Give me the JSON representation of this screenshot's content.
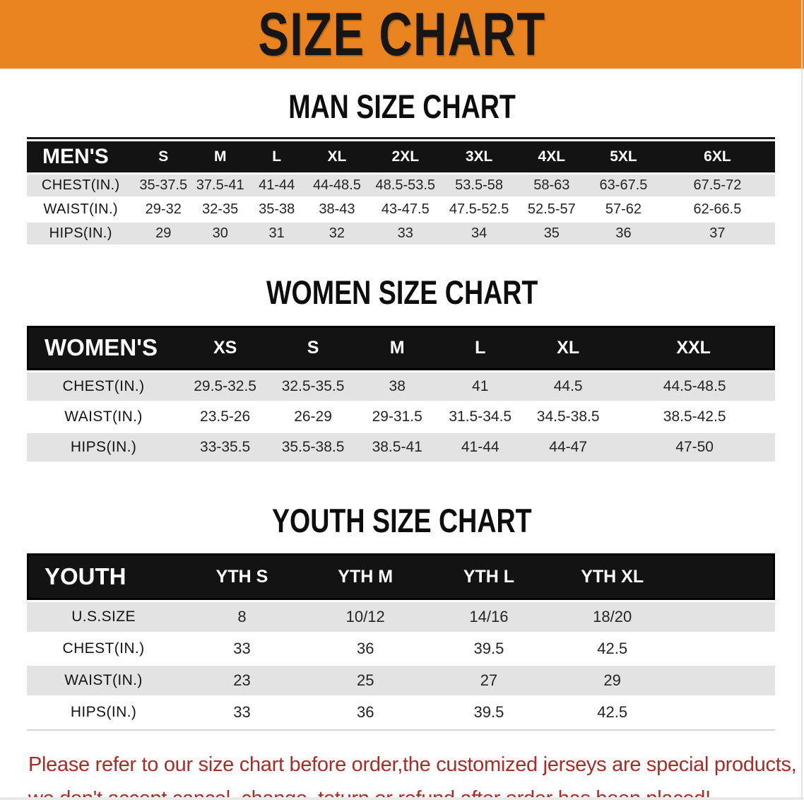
{
  "banner": {
    "title": "SIZE CHART"
  },
  "colors": {
    "banner_bg": "#E8831F",
    "header_band": "#131313",
    "row_gray": "#E3E3E3",
    "footer_red": "#A92C25"
  },
  "sections": [
    {
      "heading": "MAN SIZE CHART",
      "table": {
        "header_label": "MEN'S",
        "columns": [
          "S",
          "M",
          "L",
          "XL",
          "2XL",
          "3XL",
          "4XL",
          "5XL",
          "6XL"
        ],
        "rows": [
          {
            "label": "CHEST(IN.)",
            "values": [
              "35-37.5",
              "37.5-41",
              "41-44",
              "44-48.5",
              "48.5-53.5",
              "53.5-58",
              "58-63",
              "63-67.5",
              "67.5-72"
            ]
          },
          {
            "label": "WAIST(IN.)",
            "values": [
              "29-32",
              "32-35",
              "35-38",
              "38-43",
              "43-47.5",
              "47.5-52.5",
              "52.5-57",
              "57-62",
              "62-66.5"
            ]
          },
          {
            "label": "HIPS(IN.)",
            "values": [
              "29",
              "30",
              "31",
              "32",
              "33",
              "34",
              "35",
              "36",
              "37"
            ]
          }
        ]
      }
    },
    {
      "heading": "WOMEN SIZE CHART",
      "table": {
        "header_label": "WOMEN'S",
        "columns": [
          "XS",
          "S",
          "M",
          "L",
          "XL",
          "XXL"
        ],
        "rows": [
          {
            "label": "CHEST(IN.)",
            "values": [
              "29.5-32.5",
              "32.5-35.5",
              "38",
              "41",
              "44.5",
              "44.5-48.5"
            ]
          },
          {
            "label": "WAIST(IN.)",
            "values": [
              "23.5-26",
              "26-29",
              "29-31.5",
              "31.5-34.5",
              "34.5-38.5",
              "38.5-42.5"
            ]
          },
          {
            "label": "HIPS(IN.)",
            "values": [
              "33-35.5",
              "35.5-38.5",
              "38.5-41",
              "41-44",
              "44-47",
              "47-50"
            ]
          }
        ]
      }
    },
    {
      "heading": "YOUTH SIZE CHART",
      "table": {
        "header_label": "YOUTH",
        "spacer_col": true,
        "columns": [
          "YTH S",
          "YTH M",
          "YTH L",
          "YTH XL"
        ],
        "rows": [
          {
            "label": "U.S.SIZE",
            "values": [
              "8",
              "10/12",
              "14/16",
              "18/20"
            ]
          },
          {
            "label": "CHEST(IN.)",
            "values": [
              "33",
              "36",
              "39.5",
              "42.5"
            ]
          },
          {
            "label": "WAIST(IN.)",
            "values": [
              "23",
              "25",
              "27",
              "29"
            ]
          },
          {
            "label": "HIPS(IN.)",
            "values": [
              "33",
              "36",
              "39.5",
              "42.5"
            ]
          }
        ]
      }
    }
  ],
  "footer": {
    "line1": "Please refer to our size chart before order,the customized jerseys are special products,",
    "line2": "we don't accept cancel, change, teturn or refund after order has been placed!"
  }
}
